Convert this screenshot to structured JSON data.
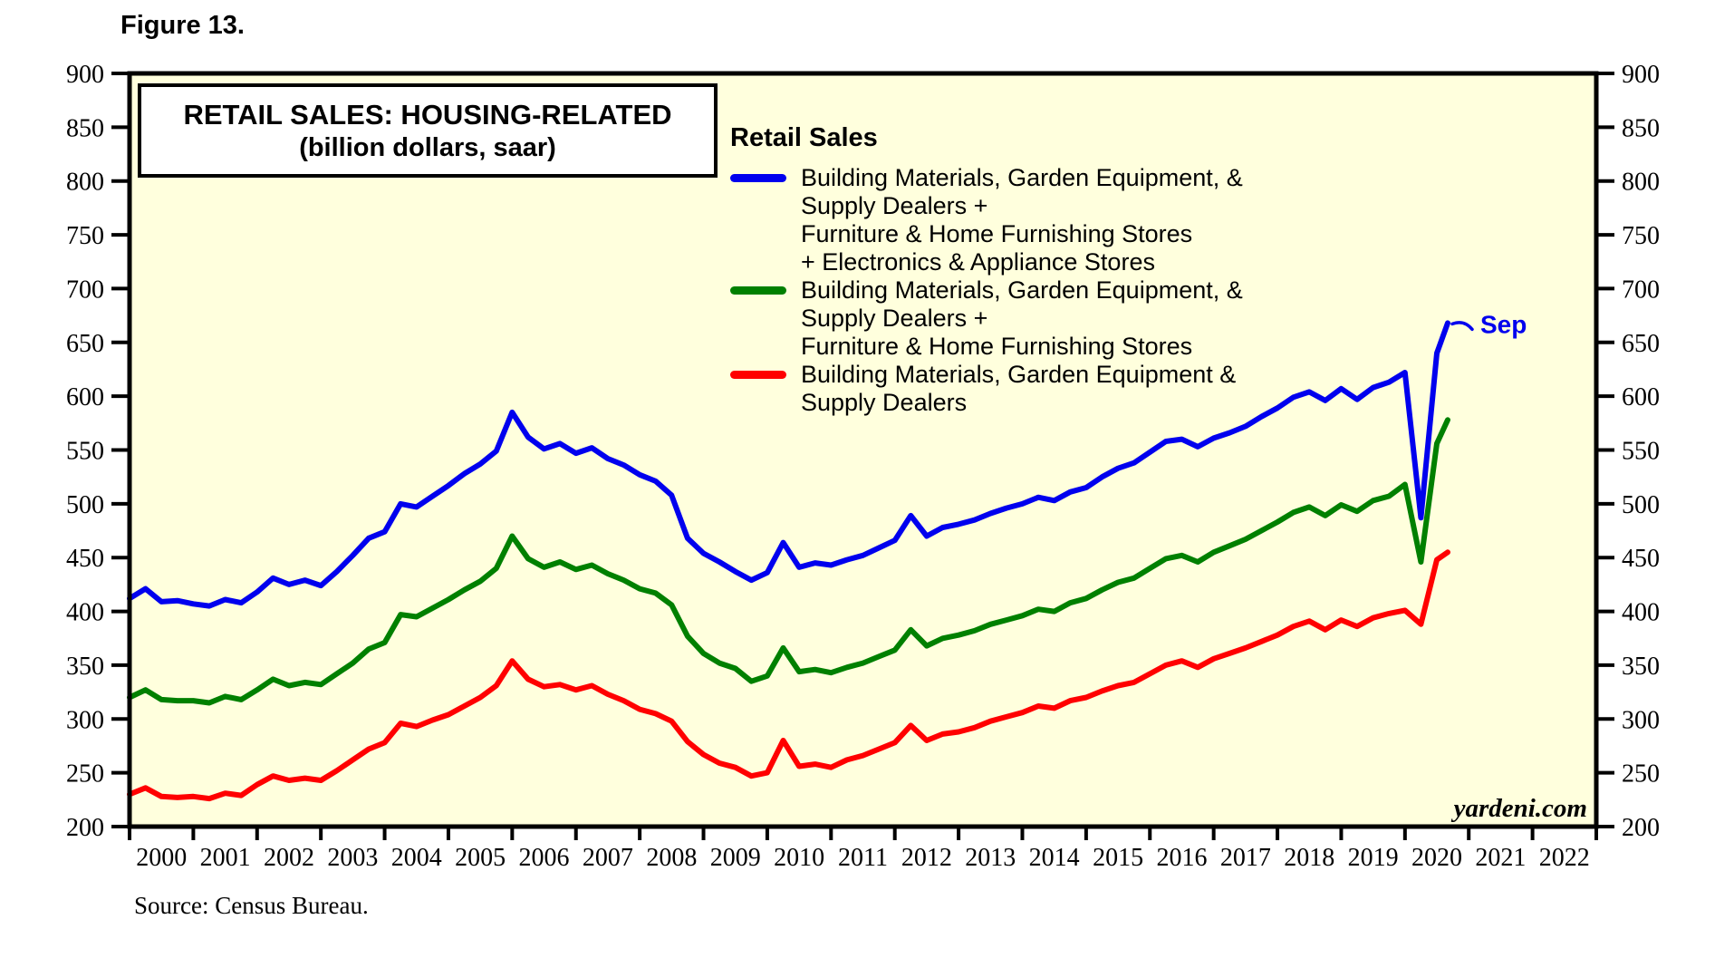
{
  "figure_label": "Figure 13.",
  "title": {
    "line1": "RETAIL SALES: HOUSING-RELATED",
    "line2": "(billion dollars, saar)"
  },
  "legend": {
    "header": "Retail Sales",
    "items": [
      {
        "color": "#0000ee",
        "label": "Building Materials, Garden Equipment, &\nSupply Dealers +\nFurniture & Home Furnishing Stores\n+ Electronics & Appliance Stores"
      },
      {
        "color": "#008000",
        "label": "Building Materials, Garden Equipment, &\nSupply Dealers +\nFurniture & Home Furnishing Stores"
      },
      {
        "color": "#ff0000",
        "label": "Building Materials, Garden Equipment &\nSupply Dealers"
      }
    ]
  },
  "watermark": "yardeni.com",
  "source": "Source: Census Bureau.",
  "colors": {
    "plot_bg": "#ffffdd",
    "frame": "#000000"
  },
  "axes": {
    "y_min": 200,
    "y_max": 900,
    "y_step": 50,
    "x_start_year": 2000,
    "x_end_year": 2022
  },
  "chart_data": {
    "type": "line",
    "title": "RETAIL SALES: HOUSING-RELATED (billion dollars, saar)",
    "ylabel": "billion dollars, saar",
    "ylim": [
      200,
      900
    ],
    "grid": false,
    "legend_position": "top-center-inside",
    "last_point_label": "Sep",
    "x": [
      2000,
      2000.25,
      2000.5,
      2000.75,
      2001,
      2001.25,
      2001.5,
      2001.75,
      2002,
      2002.25,
      2002.5,
      2002.75,
      2003,
      2003.25,
      2003.5,
      2003.75,
      2004,
      2004.25,
      2004.5,
      2004.75,
      2005,
      2005.25,
      2005.5,
      2005.75,
      2006,
      2006.25,
      2006.5,
      2006.75,
      2007,
      2007.25,
      2007.5,
      2007.75,
      2008,
      2008.25,
      2008.5,
      2008.75,
      2009,
      2009.25,
      2009.5,
      2009.75,
      2010,
      2010.25,
      2010.5,
      2010.75,
      2011,
      2011.25,
      2011.5,
      2011.75,
      2012,
      2012.25,
      2012.5,
      2012.75,
      2013,
      2013.25,
      2013.5,
      2013.75,
      2014,
      2014.25,
      2014.5,
      2014.75,
      2015,
      2015.25,
      2015.5,
      2015.75,
      2016,
      2016.25,
      2016.5,
      2016.75,
      2017,
      2017.25,
      2017.5,
      2017.75,
      2018,
      2018.25,
      2018.5,
      2018.75,
      2019,
      2019.25,
      2019.5,
      2019.75,
      2020,
      2020.25,
      2020.5,
      2020.67
    ],
    "series": [
      {
        "name": "Building Materials, Garden Equipment, & Supply Dealers + Furniture & Home Furnishing Stores + Electronics & Appliance Stores",
        "color": "#0000ee",
        "values": [
          412,
          421,
          409,
          410,
          407,
          405,
          411,
          408,
          418,
          431,
          425,
          429,
          424,
          437,
          452,
          468,
          474,
          500,
          497,
          507,
          517,
          528,
          537,
          549,
          585,
          562,
          551,
          556,
          547,
          552,
          542,
          536,
          527,
          521,
          508,
          468,
          454,
          446,
          437,
          429,
          436,
          464,
          441,
          445,
          443,
          448,
          452,
          459,
          466,
          489,
          470,
          478,
          481,
          485,
          491,
          496,
          500,
          506,
          503,
          511,
          515,
          525,
          533,
          538,
          548,
          558,
          560,
          553,
          561,
          566,
          572,
          581,
          589,
          599,
          604,
          596,
          607,
          597,
          608,
          613,
          622,
          487,
          640,
          668
        ]
      },
      {
        "name": "Building Materials, Garden Equipment, & Supply Dealers + Furniture & Home Furnishing Stores",
        "color": "#008000",
        "values": [
          320,
          327,
          318,
          317,
          317,
          315,
          321,
          318,
          327,
          337,
          331,
          334,
          332,
          342,
          352,
          365,
          371,
          397,
          395,
          403,
          411,
          420,
          428,
          440,
          470,
          449,
          441,
          446,
          439,
          443,
          435,
          429,
          421,
          417,
          406,
          377,
          361,
          352,
          347,
          335,
          340,
          366,
          344,
          346,
          343,
          348,
          352,
          358,
          364,
          383,
          368,
          375,
          378,
          382,
          388,
          392,
          396,
          402,
          400,
          408,
          412,
          420,
          427,
          431,
          440,
          449,
          452,
          446,
          455,
          461,
          467,
          475,
          483,
          492,
          497,
          489,
          499,
          493,
          503,
          507,
          518,
          446,
          556,
          578
        ]
      },
      {
        "name": "Building Materials, Garden Equipment & Supply Dealers",
        "color": "#ff0000",
        "values": [
          230,
          236,
          228,
          227,
          228,
          226,
          231,
          229,
          239,
          247,
          243,
          245,
          243,
          252,
          262,
          272,
          278,
          296,
          293,
          299,
          304,
          312,
          320,
          331,
          354,
          337,
          330,
          332,
          327,
          331,
          323,
          317,
          309,
          305,
          298,
          279,
          267,
          259,
          255,
          247,
          250,
          280,
          256,
          258,
          255,
          262,
          266,
          272,
          278,
          294,
          280,
          286,
          288,
          292,
          298,
          302,
          306,
          312,
          310,
          317,
          320,
          326,
          331,
          334,
          342,
          350,
          354,
          348,
          356,
          361,
          366,
          372,
          378,
          386,
          391,
          383,
          392,
          386,
          394,
          398,
          401,
          388,
          448,
          455
        ]
      }
    ]
  }
}
